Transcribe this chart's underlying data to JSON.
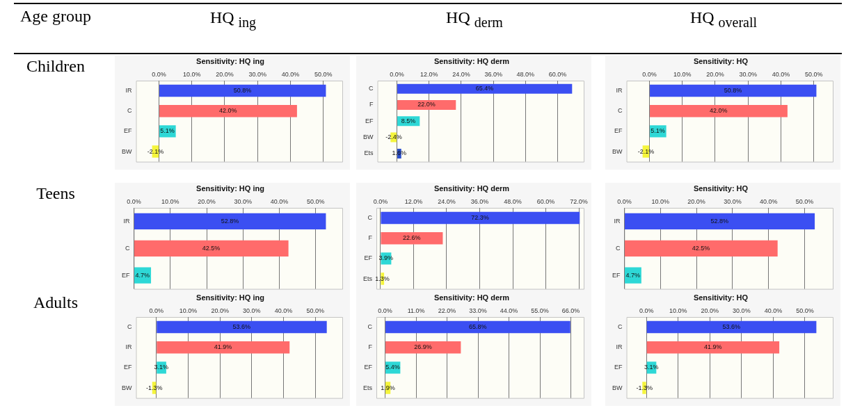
{
  "chart_data": [
    {
      "type": "other",
      "annotations": [
        "Age group",
        "HQ $_{ing}$",
        "HQ $_{derm}$",
        "HQ $_{overall}$",
        "Children",
        "Teens",
        "Adults"
      ]
    },
    {
      "type": "bar",
      "orientation": "horizontal",
      "title": "Sensitivity: HQ ing",
      "categories": [
        "IR",
        "C",
        "EF",
        "BW"
      ],
      "values": [
        50.8,
        42.0,
        5.1,
        -2.1
      ],
      "colors": [
        "#3b4ff2",
        "#ff6b6b",
        "#2ed8d6",
        "#f5f53c"
      ],
      "value_labels": [
        "50.8%",
        "42.0%",
        "5.1%",
        "-2.1%"
      ],
      "xlim": [
        -7,
        56
      ],
      "xticks": [
        {
          "value": 0,
          "label": "0.0%"
        },
        {
          "value": 10,
          "label": "10.0%"
        },
        {
          "value": 20,
          "label": "20.0%"
        },
        {
          "value": 30,
          "label": "30.0%"
        },
        {
          "value": 40,
          "label": "40.0%"
        },
        {
          "value": 50,
          "label": "50.0%"
        }
      ],
      "grid": "x"
    },
    {
      "type": "bar",
      "orientation": "horizontal",
      "title": "Sensitivity: HQ derm",
      "categories": [
        "C",
        "F",
        "EF",
        "BW",
        "Ets"
      ],
      "values": [
        65.4,
        22.0,
        8.5,
        -2.4,
        1.6
      ],
      "colors": [
        "#3b4ff2",
        "#ff6b6b",
        "#2ed8d6",
        "#f5f53c",
        "#2a4fcc"
      ],
      "value_labels": [
        "65.4%",
        "22.0%",
        "8.5%",
        "-2.4%",
        "1.6%"
      ],
      "xlim": [
        -7.3,
        70
      ],
      "xticks": [
        {
          "value": 0,
          "label": "0.0%"
        },
        {
          "value": 12,
          "label": "12.0%"
        },
        {
          "value": 24,
          "label": "24.0%"
        },
        {
          "value": 36,
          "label": "36.0%"
        },
        {
          "value": 48,
          "label": "48.0%"
        },
        {
          "value": 60,
          "label": "60.0%"
        }
      ],
      "grid": "x"
    },
    {
      "type": "bar",
      "orientation": "horizontal",
      "title": "Sensitivity: HQ",
      "categories": [
        "IR",
        "C",
        "EF",
        "BW"
      ],
      "values": [
        50.8,
        42.0,
        5.1,
        -2.1
      ],
      "colors": [
        "#3b4ff2",
        "#ff6b6b",
        "#2ed8d6",
        "#f5f53c"
      ],
      "value_labels": [
        "50.8%",
        "42.0%",
        "5.1%",
        "-2.1%"
      ],
      "xlim": [
        -7,
        56
      ],
      "xticks": [
        {
          "value": 0,
          "label": "0.0%"
        },
        {
          "value": 10,
          "label": "10.0%"
        },
        {
          "value": 20,
          "label": "20.0%"
        },
        {
          "value": 30,
          "label": "30.0%"
        },
        {
          "value": 40,
          "label": "40.0%"
        },
        {
          "value": 50,
          "label": "50.0%"
        }
      ],
      "grid": "x"
    },
    {
      "type": "bar",
      "orientation": "horizontal",
      "title": "Sensitivity: HQ ing",
      "categories": [
        "IR",
        "C",
        "EF"
      ],
      "values": [
        52.8,
        42.5,
        4.7
      ],
      "colors": [
        "#3b4ff2",
        "#ff6b6b",
        "#2ed8d6"
      ],
      "value_labels": [
        "52.8%",
        "42.5%",
        "4.7%"
      ],
      "xlim": [
        0,
        57.5
      ],
      "xticks": [
        {
          "value": 0,
          "label": "0.0%"
        },
        {
          "value": 10,
          "label": "10.0%"
        },
        {
          "value": 20,
          "label": "20.0%"
        },
        {
          "value": 30,
          "label": "30.0%"
        },
        {
          "value": 40,
          "label": "40.0%"
        },
        {
          "value": 50,
          "label": "50.0%"
        }
      ],
      "grid": "x"
    },
    {
      "type": "bar",
      "orientation": "horizontal",
      "title": "Sensitivity: HQ derm",
      "categories": [
        "C",
        "F",
        "EF",
        "Ets"
      ],
      "values": [
        72.3,
        22.6,
        3.9,
        1.3
      ],
      "colors": [
        "#3b4ff2",
        "#ff6b6b",
        "#2ed8d6",
        "#f5f53c"
      ],
      "value_labels": [
        "72.3%",
        "22.6%",
        "3.9%",
        "1.3%"
      ],
      "xlim": [
        -1.5,
        74
      ],
      "xticks": [
        {
          "value": 0,
          "label": "0.0%"
        },
        {
          "value": 12,
          "label": "12.0%"
        },
        {
          "value": 24,
          "label": "24.0%"
        },
        {
          "value": 36,
          "label": "36.0%"
        },
        {
          "value": 48,
          "label": "48.0%"
        },
        {
          "value": 60,
          "label": "60.0%"
        },
        {
          "value": 72,
          "label": "72.0%"
        }
      ],
      "grid": "x"
    },
    {
      "type": "bar",
      "orientation": "horizontal",
      "title": "Sensitivity: HQ",
      "categories": [
        "IR",
        "C",
        "EF"
      ],
      "values": [
        52.8,
        42.5,
        4.7
      ],
      "colors": [
        "#3b4ff2",
        "#ff6b6b",
        "#2ed8d6"
      ],
      "value_labels": [
        "52.8%",
        "42.5%",
        "4.7%"
      ],
      "xlim": [
        0,
        58
      ],
      "xticks": [
        {
          "value": 0,
          "label": "0.0%"
        },
        {
          "value": 10,
          "label": "10.0%"
        },
        {
          "value": 20,
          "label": "20.0%"
        },
        {
          "value": 30,
          "label": "30.0%"
        },
        {
          "value": 40,
          "label": "40.0%"
        },
        {
          "value": 50,
          "label": "50.0%"
        }
      ],
      "grid": "x"
    },
    {
      "type": "bar",
      "orientation": "horizontal",
      "title": "Sensitivity: HQ ing",
      "categories": [
        "C",
        "IR",
        "EF",
        "BW"
      ],
      "values": [
        53.6,
        41.9,
        3.1,
        -1.3
      ],
      "colors": [
        "#3b4ff2",
        "#ff6b6b",
        "#2ed8d6",
        "#f5f53c"
      ],
      "value_labels": [
        "53.6%",
        "41.9%",
        "3.1%",
        "-1.3%"
      ],
      "xlim": [
        -6.4,
        58.7
      ],
      "xticks": [
        {
          "value": 0,
          "label": "0.0%"
        },
        {
          "value": 10,
          "label": "10.0%"
        },
        {
          "value": 20,
          "label": "20.0%"
        },
        {
          "value": 30,
          "label": "30.0%"
        },
        {
          "value": 40,
          "label": "40.0%"
        },
        {
          "value": 50,
          "label": "50.0%"
        }
      ],
      "grid": "x"
    },
    {
      "type": "bar",
      "orientation": "horizontal",
      "title": "Sensitivity: HQ derm",
      "categories": [
        "C",
        "F",
        "EF",
        "Ets"
      ],
      "values": [
        65.8,
        26.9,
        5.4,
        1.9
      ],
      "colors": [
        "#3b4ff2",
        "#ff6b6b",
        "#2ed8d6",
        "#f5f53c"
      ],
      "value_labels": [
        "65.8%",
        "26.9%",
        "5.4%",
        "1.9%"
      ],
      "xlim": [
        -3.1,
        70.8
      ],
      "xticks": [
        {
          "value": 0,
          "label": "0.0%"
        },
        {
          "value": 11,
          "label": "11.0%"
        },
        {
          "value": 22,
          "label": "22.0%"
        },
        {
          "value": 33,
          "label": "33.0%"
        },
        {
          "value": 44,
          "label": "44.0%"
        },
        {
          "value": 55,
          "label": "55.0%"
        },
        {
          "value": 66,
          "label": "66.0%"
        }
      ],
      "grid": "x"
    },
    {
      "type": "bar",
      "orientation": "horizontal",
      "title": "Sensitivity: HQ",
      "categories": [
        "C",
        "IR",
        "EF",
        "BW"
      ],
      "values": [
        53.6,
        41.9,
        3.1,
        -1.3
      ],
      "colors": [
        "#3b4ff2",
        "#ff6b6b",
        "#2ed8d6",
        "#f5f53c"
      ],
      "value_labels": [
        "53.6%",
        "41.9%",
        "3.1%",
        "-1.3%"
      ],
      "xlim": [
        -6.3,
        59
      ],
      "xticks": [
        {
          "value": 0,
          "label": "0.0%"
        },
        {
          "value": 10,
          "label": "10.0%"
        },
        {
          "value": 20,
          "label": "20.0%"
        },
        {
          "value": 30,
          "label": "30.0%"
        },
        {
          "value": 40,
          "label": "40.0%"
        },
        {
          "value": 50,
          "label": "50.0%"
        }
      ],
      "grid": "x"
    }
  ]
}
